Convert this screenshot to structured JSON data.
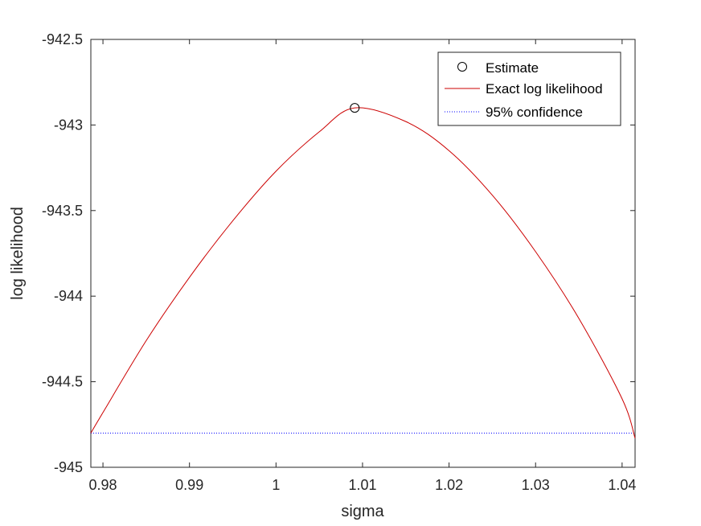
{
  "chart_data": {
    "type": "line",
    "title": "",
    "xlabel": "sigma",
    "ylabel": "log likelihood",
    "xlim": [
      0.9786,
      1.0415
    ],
    "ylim": [
      -945,
      -942.5
    ],
    "xticks": [
      0.98,
      0.99,
      1,
      1.01,
      1.02,
      1.03,
      1.04
    ],
    "xtick_labels": [
      "0.98",
      "0.99",
      "1",
      "1.01",
      "1.02",
      "1.03",
      "1.04"
    ],
    "yticks": [
      -942.5,
      -943,
      -943.5,
      -944,
      -944.5,
      -945
    ],
    "ytick_labels": [
      "-942.5",
      "-943",
      "-943.5",
      "-944",
      "-944.5",
      "-945"
    ],
    "grid": false,
    "legend_position": "top-right",
    "series": [
      {
        "name": "Estimate",
        "style": "marker",
        "marker": "circle",
        "color": "#000000",
        "x": [
          1.0091
        ],
        "y": [
          -942.9
        ]
      },
      {
        "name": "Exact log likelihood",
        "style": "line",
        "color": "#cc0000",
        "x": [
          0.9786,
          0.98,
          0.985,
          0.99,
          0.995,
          1.0,
          1.005,
          1.0091,
          1.015,
          1.02,
          1.025,
          1.03,
          1.035,
          1.04,
          1.0415
        ],
        "y": [
          -944.8,
          -944.68,
          -944.26,
          -943.89,
          -943.56,
          -943.27,
          -943.04,
          -942.9,
          -942.98,
          -943.15,
          -943.41,
          -943.74,
          -944.13,
          -944.6,
          -944.83
        ]
      },
      {
        "name": "95% confidence",
        "style": "dotted",
        "color": "#0000ff",
        "x": [
          0.9786,
          1.0415
        ],
        "y": [
          -944.8,
          -944.8
        ]
      }
    ]
  }
}
